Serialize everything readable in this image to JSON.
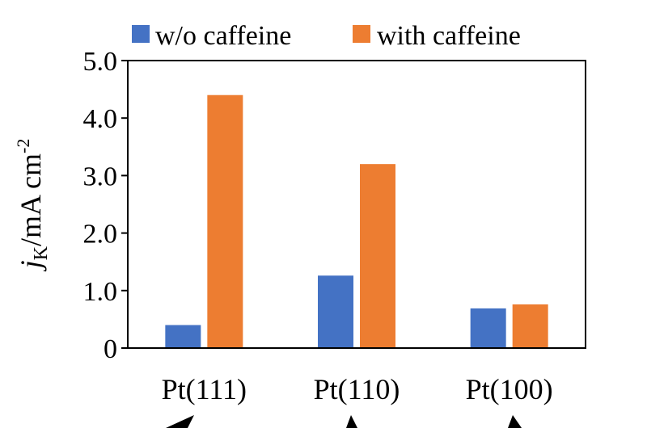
{
  "chart_data": {
    "type": "bar",
    "categories": [
      "Pt(111)",
      "Pt(110)",
      "Pt(100)"
    ],
    "series": [
      {
        "name": "w/o caffeine",
        "values": [
          0.4,
          1.26,
          0.69
        ],
        "color": "#4472C4"
      },
      {
        "name": "with caffeine",
        "values": [
          4.4,
          3.2,
          0.76
        ],
        "color": "#ED7D31"
      }
    ],
    "ylabel": {
      "main": "j",
      "sub": "K",
      "rest": "/mA cm",
      "sup": "-2"
    },
    "ylim": [
      0,
      5.0
    ],
    "yticks": [
      {
        "value": 0,
        "label": "0"
      },
      {
        "value": 1.0,
        "label": "1.0"
      },
      {
        "value": 2.0,
        "label": "2.0"
      },
      {
        "value": 3.0,
        "label": "3.0"
      },
      {
        "value": 4.0,
        "label": "4.0"
      },
      {
        "value": 5.0,
        "label": "5.0"
      }
    ],
    "legend_position": "top",
    "grid": false
  }
}
